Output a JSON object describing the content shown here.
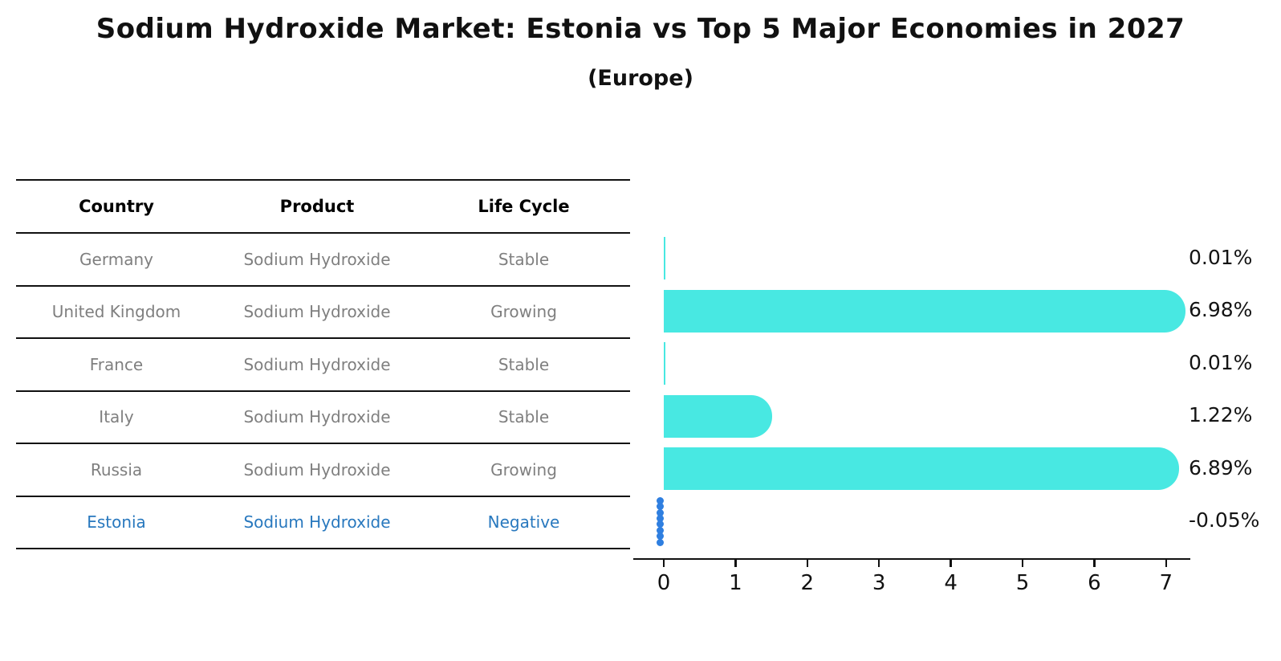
{
  "title": "Sodium Hydroxide Market: Estonia vs Top 5 Major Economies in 2027",
  "subtitle": "(Europe)",
  "table": {
    "headers": [
      "Country",
      "Product",
      "Life Cycle"
    ],
    "rows": [
      {
        "country": "Germany",
        "product": "Sodium Hydroxide",
        "life_cycle": "Stable",
        "highlight": false
      },
      {
        "country": "United Kingdom",
        "product": "Sodium Hydroxide",
        "life_cycle": "Growing",
        "highlight": false
      },
      {
        "country": "France",
        "product": "Sodium Hydroxide",
        "life_cycle": "Stable",
        "highlight": false
      },
      {
        "country": "Italy",
        "product": "Sodium Hydroxide",
        "life_cycle": "Stable",
        "highlight": false
      },
      {
        "country": "Russia",
        "product": "Sodium Hydroxide",
        "life_cycle": "Growing",
        "highlight": false
      },
      {
        "country": "Estonia",
        "product": "Sodium Hydroxide",
        "life_cycle": "Negative",
        "highlight": true
      }
    ]
  },
  "chart_data": {
    "type": "bar",
    "orientation": "horizontal",
    "title": "Sodium Hydroxide Market: Estonia vs Top 5 Major Economies in 2027",
    "subtitle": "(Europe)",
    "categories": [
      "Germany",
      "United Kingdom",
      "France",
      "Italy",
      "Russia",
      "Estonia"
    ],
    "values": [
      0.01,
      6.98,
      0.01,
      1.22,
      6.89,
      -0.05
    ],
    "value_labels": [
      "0.01%",
      "6.98%",
      "0.01%",
      "1.22%",
      "6.89%",
      "-0.05%"
    ],
    "x_ticks": [
      "0",
      "1",
      "2",
      "3",
      "4",
      "5",
      "6",
      "7"
    ],
    "xlim": [
      -0.45,
      7.4
    ],
    "grid": false,
    "legend": "none",
    "bar_color": "#48E8E2",
    "highlight_text_color": "#2878BE",
    "marker": {
      "category": "Estonia",
      "style": "dotted-vertical",
      "color": "#2F7FE0",
      "dots": 8
    },
    "axis_color": "#111111",
    "muted_text_color": "#7f7f7f"
  }
}
